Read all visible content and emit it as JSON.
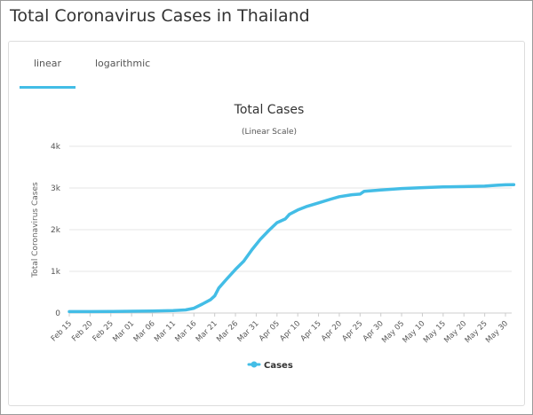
{
  "page": {
    "title": "Total Coronavirus Cases in Thailand"
  },
  "tabs": [
    {
      "label": "linear",
      "active": true
    },
    {
      "label": "logarithmic",
      "active": false
    }
  ],
  "colors": {
    "series": "#43bde6",
    "tab_underline": "#43bde6",
    "grid": "#e6e6e6"
  },
  "chart_data": {
    "type": "line",
    "title": "Total Cases",
    "subtitle": "(Linear Scale)",
    "xlabel": "",
    "ylabel": "Total Coronavirus Cases",
    "ylim": [
      0,
      4000
    ],
    "y_ticks": [
      {
        "value": 0,
        "label": "0"
      },
      {
        "value": 1000,
        "label": "1k"
      },
      {
        "value": 2000,
        "label": "2k"
      },
      {
        "value": 3000,
        "label": "3k"
      },
      {
        "value": 4000,
        "label": "4k"
      }
    ],
    "x_ticks": [
      "Feb 15",
      "Feb 20",
      "Feb 25",
      "Mar 01",
      "Mar 06",
      "Mar 11",
      "Mar 16",
      "Mar 21",
      "Mar 26",
      "Mar 31",
      "Apr 05",
      "Apr 10",
      "Apr 15",
      "Apr 20",
      "Apr 25",
      "Apr 30",
      "May 05",
      "May 10",
      "May 15",
      "May 20",
      "May 25",
      "May 30"
    ],
    "grid": true,
    "legend": {
      "position": "bottom-center"
    },
    "series": [
      {
        "name": "Cases",
        "points": [
          [
            "Feb 15",
            34
          ],
          [
            "Feb 20",
            35
          ],
          [
            "Feb 25",
            37
          ],
          [
            "Mar 01",
            42
          ],
          [
            "Mar 06",
            48
          ],
          [
            "Mar 11",
            59
          ],
          [
            "Mar 14",
            75
          ],
          [
            "Mar 16",
            114
          ],
          [
            "Mar 18",
            212
          ],
          [
            "Mar 20",
            322
          ],
          [
            "Mar 21",
            411
          ],
          [
            "Mar 22",
            599
          ],
          [
            "Mar 24",
            827
          ],
          [
            "Mar 26",
            1045
          ],
          [
            "Mar 28",
            1245
          ],
          [
            "Mar 30",
            1524
          ],
          [
            "Apr 01",
            1771
          ],
          [
            "Apr 03",
            1978
          ],
          [
            "Apr 05",
            2169
          ],
          [
            "Apr 07",
            2258
          ],
          [
            "Apr 08",
            2369
          ],
          [
            "Apr 10",
            2473
          ],
          [
            "Apr 12",
            2551
          ],
          [
            "Apr 15",
            2643
          ],
          [
            "Apr 18",
            2733
          ],
          [
            "Apr 20",
            2792
          ],
          [
            "Apr 23",
            2839
          ],
          [
            "Apr 25",
            2854
          ],
          [
            "Apr 26",
            2922
          ],
          [
            "Apr 30",
            2954
          ],
          [
            "May 05",
            2988
          ],
          [
            "May 10",
            3009
          ],
          [
            "May 15",
            3025
          ],
          [
            "May 20",
            3034
          ],
          [
            "May 25",
            3045
          ],
          [
            "May 28",
            3065
          ],
          [
            "May 30",
            3076
          ],
          [
            "Jun 01",
            3081
          ]
        ]
      }
    ]
  }
}
